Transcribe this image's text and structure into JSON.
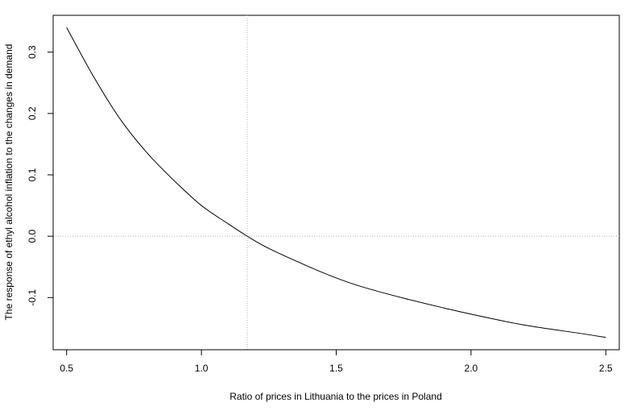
{
  "chart_data": {
    "type": "line",
    "title": "",
    "xlabel": "Ratio of prices in Lithuania to the prices in Poland",
    "ylabel": "The response of ethyl alcohol inflation to the changes in demand",
    "xlim": [
      0.45,
      2.55
    ],
    "ylim": [
      -0.185,
      0.36
    ],
    "x_ticks": [
      0.5,
      1.0,
      1.5,
      2.0,
      2.5
    ],
    "x_tick_labels": [
      "0.5",
      "1.0",
      "1.5",
      "2.0",
      "2.5"
    ],
    "y_ticks": [
      -0.1,
      0.0,
      0.1,
      0.2,
      0.3
    ],
    "y_tick_labels": [
      "-0.1",
      "0.0",
      "0.1",
      "0.2",
      "0.3"
    ],
    "grid": false,
    "reference_lines": {
      "vertical_x": 1.17,
      "horizontal_y": 0.0,
      "style": "dotted"
    },
    "series": [
      {
        "x": [
          0.5,
          0.6,
          0.7,
          0.8,
          0.9,
          1.0,
          1.1,
          1.17,
          1.25,
          1.4,
          1.5,
          1.6,
          1.75,
          1.9,
          2.0,
          2.2,
          2.4,
          2.5
        ],
        "values": [
          0.34,
          0.26,
          0.19,
          0.135,
          0.09,
          0.05,
          0.02,
          0.0,
          -0.02,
          -0.05,
          -0.068,
          -0.083,
          -0.101,
          -0.117,
          -0.127,
          -0.145,
          -0.158,
          -0.165
        ]
      }
    ],
    "colors": {
      "line": "#000000",
      "reference": "#b0b0b0",
      "axis": "#000000"
    }
  }
}
